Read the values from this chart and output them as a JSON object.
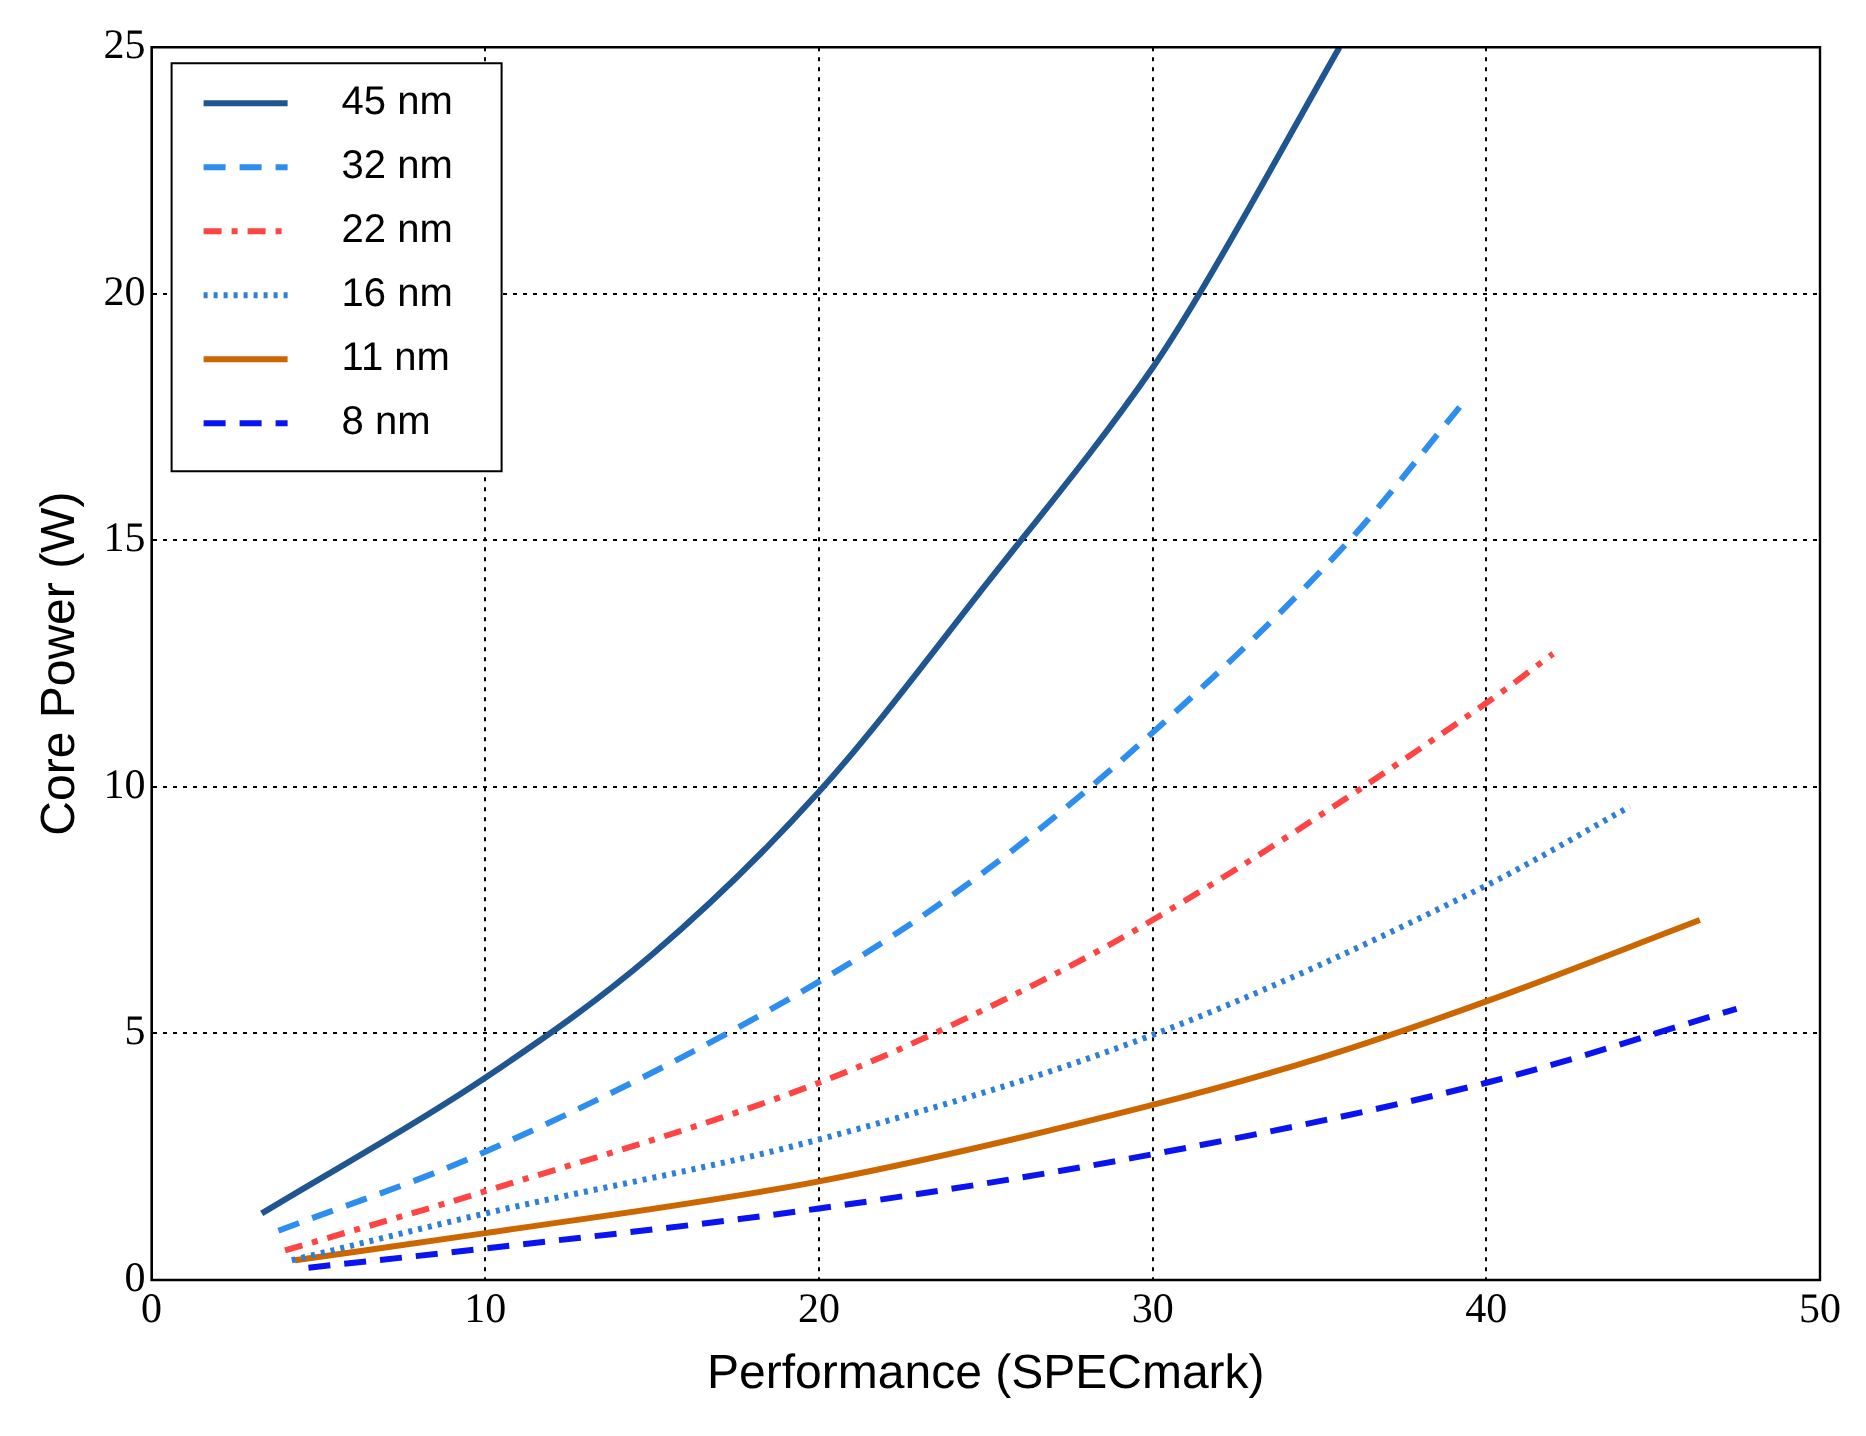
{
  "chart_data": {
    "type": "line",
    "xlabel": "Performance (SPECmark)",
    "ylabel": "Core Power (W)",
    "xlim": [
      0,
      50
    ],
    "xticks": [
      0,
      10,
      20,
      30,
      40,
      50
    ],
    "ylim": [
      0,
      25
    ],
    "yticks": [
      0,
      5,
      10,
      15,
      20,
      25
    ],
    "grid": true,
    "legend": "top left",
    "marker": "none",
    "series": [
      {
        "name": "45 nm",
        "color": "#1f5591",
        "line_style": "solid",
        "x": [
          3.3,
          10,
          15,
          20,
          25,
          30,
          31.4,
          35.6
        ],
        "values": [
          1.35,
          4.1,
          6.6,
          9.9,
          14.1,
          18.5,
          20,
          25
        ]
      },
      {
        "name": "32 nm",
        "color": "#2e8ef0",
        "line_style": "dashed",
        "x": [
          3.8,
          10,
          20,
          25,
          30,
          35.9,
          39.2
        ],
        "values": [
          1.0,
          2.6,
          6.05,
          8.3,
          11.1,
          15,
          17.7
        ]
      },
      {
        "name": "22 nm",
        "color": "#ff4444",
        "line_style": "dashdot",
        "x": [
          4.0,
          10,
          20,
          25,
          30,
          40,
          42.0
        ],
        "values": [
          0.6,
          1.8,
          4.0,
          5.5,
          7.3,
          11.7,
          12.7
        ]
      },
      {
        "name": "16 nm",
        "color": "#2f7ed8",
        "line_style": "dotted",
        "x": [
          4.2,
          10,
          20,
          30,
          40,
          44.3
        ],
        "values": [
          0.4,
          1.35,
          2.85,
          4.97,
          8.0,
          9.6
        ]
      },
      {
        "name": "11 nm",
        "color": "#cc6600",
        "line_style": "solid",
        "x": [
          4.3,
          10,
          20,
          30,
          35,
          40,
          46.4
        ],
        "values": [
          0.4,
          0.95,
          2.0,
          3.55,
          4.5,
          5.65,
          7.3
        ]
      },
      {
        "name": "8 nm",
        "color": "#0a14f0",
        "line_style": "dashed",
        "x": [
          4.7,
          10,
          20,
          30,
          40,
          47.5
        ],
        "values": [
          0.25,
          0.64,
          1.45,
          2.55,
          4.0,
          5.5
        ]
      }
    ]
  }
}
